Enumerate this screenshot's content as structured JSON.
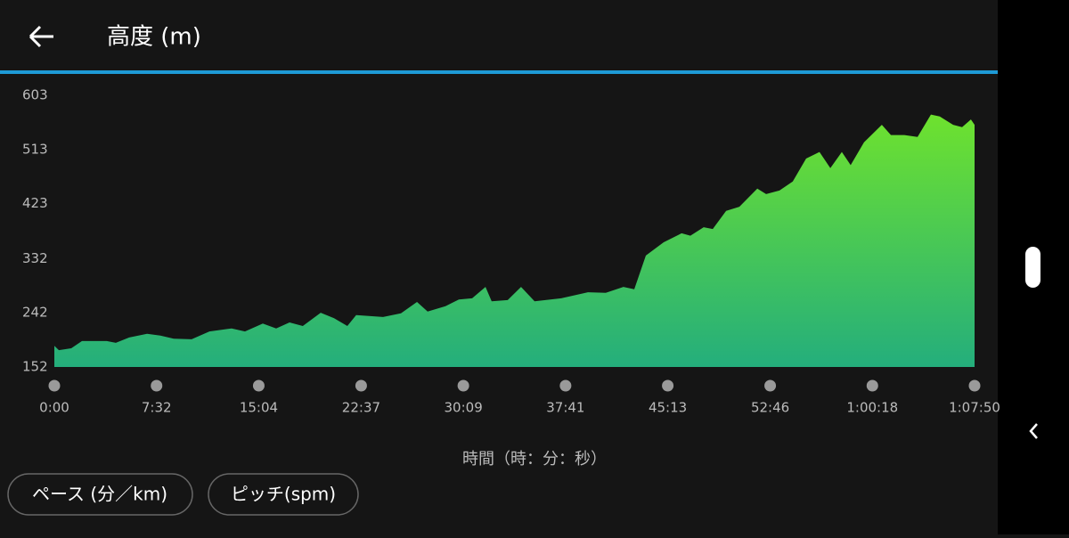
{
  "header": {
    "title": "高度 (m)"
  },
  "chart_data": {
    "type": "area",
    "xlabel": "時間（時：分：秒）",
    "x": [
      0,
      20,
      75,
      122,
      232,
      272,
      331,
      410,
      469,
      528,
      607,
      686,
      784,
      843,
      922,
      981,
      1040,
      1099,
      1178,
      1237,
      1296,
      1335,
      1454,
      1533,
      1604,
      1651,
      1730,
      1789,
      1848,
      1907,
      1934,
      2005,
      2064,
      2124,
      2242,
      2360,
      2439,
      2517,
      2565,
      2616,
      2695,
      2774,
      2813,
      2872,
      2912,
      2971,
      3030,
      3109,
      3148,
      3207,
      3266,
      3325,
      3384,
      3432,
      3483,
      3522,
      3581,
      3660,
      3700,
      3759,
      3818,
      3877,
      3916,
      3975,
      4015,
      4054,
      4070
    ],
    "values": [
      187,
      180,
      183,
      195,
      195,
      192,
      201,
      207,
      204,
      199,
      198,
      211,
      216,
      211,
      224,
      216,
      226,
      220,
      242,
      233,
      220,
      238,
      235,
      241,
      260,
      244,
      253,
      264,
      266,
      285,
      261,
      263,
      285,
      261,
      266,
      276,
      275,
      285,
      281,
      337,
      359,
      374,
      370,
      384,
      381,
      411,
      418,
      448,
      439,
      445,
      460,
      498,
      509,
      482,
      509,
      487,
      525,
      554,
      537,
      537,
      534,
      571,
      568,
      554,
      550,
      563,
      554
    ],
    "colors": [
      "#6ee22e",
      "#24ae7c"
    ],
    "xlim": [
      0,
      4070
    ],
    "ylim": [
      152,
      603
    ],
    "yticks": [
      152,
      242,
      332,
      423,
      513,
      603
    ],
    "xticks": [
      {
        "value": 0,
        "label": "0:00"
      },
      {
        "value": 452,
        "label": "7:32"
      },
      {
        "value": 904,
        "label": "15:04"
      },
      {
        "value": 1357,
        "label": "22:37"
      },
      {
        "value": 1809,
        "label": "30:09"
      },
      {
        "value": 2261,
        "label": "37:41"
      },
      {
        "value": 2713,
        "label": "45:13"
      },
      {
        "value": 3166,
        "label": "52:46"
      },
      {
        "value": 3618,
        "label": "1:00:18"
      },
      {
        "value": 4070,
        "label": "1:07:50"
      }
    ]
  },
  "buttons": [
    "ペース (分／km)",
    "ピッチ(spm)"
  ]
}
